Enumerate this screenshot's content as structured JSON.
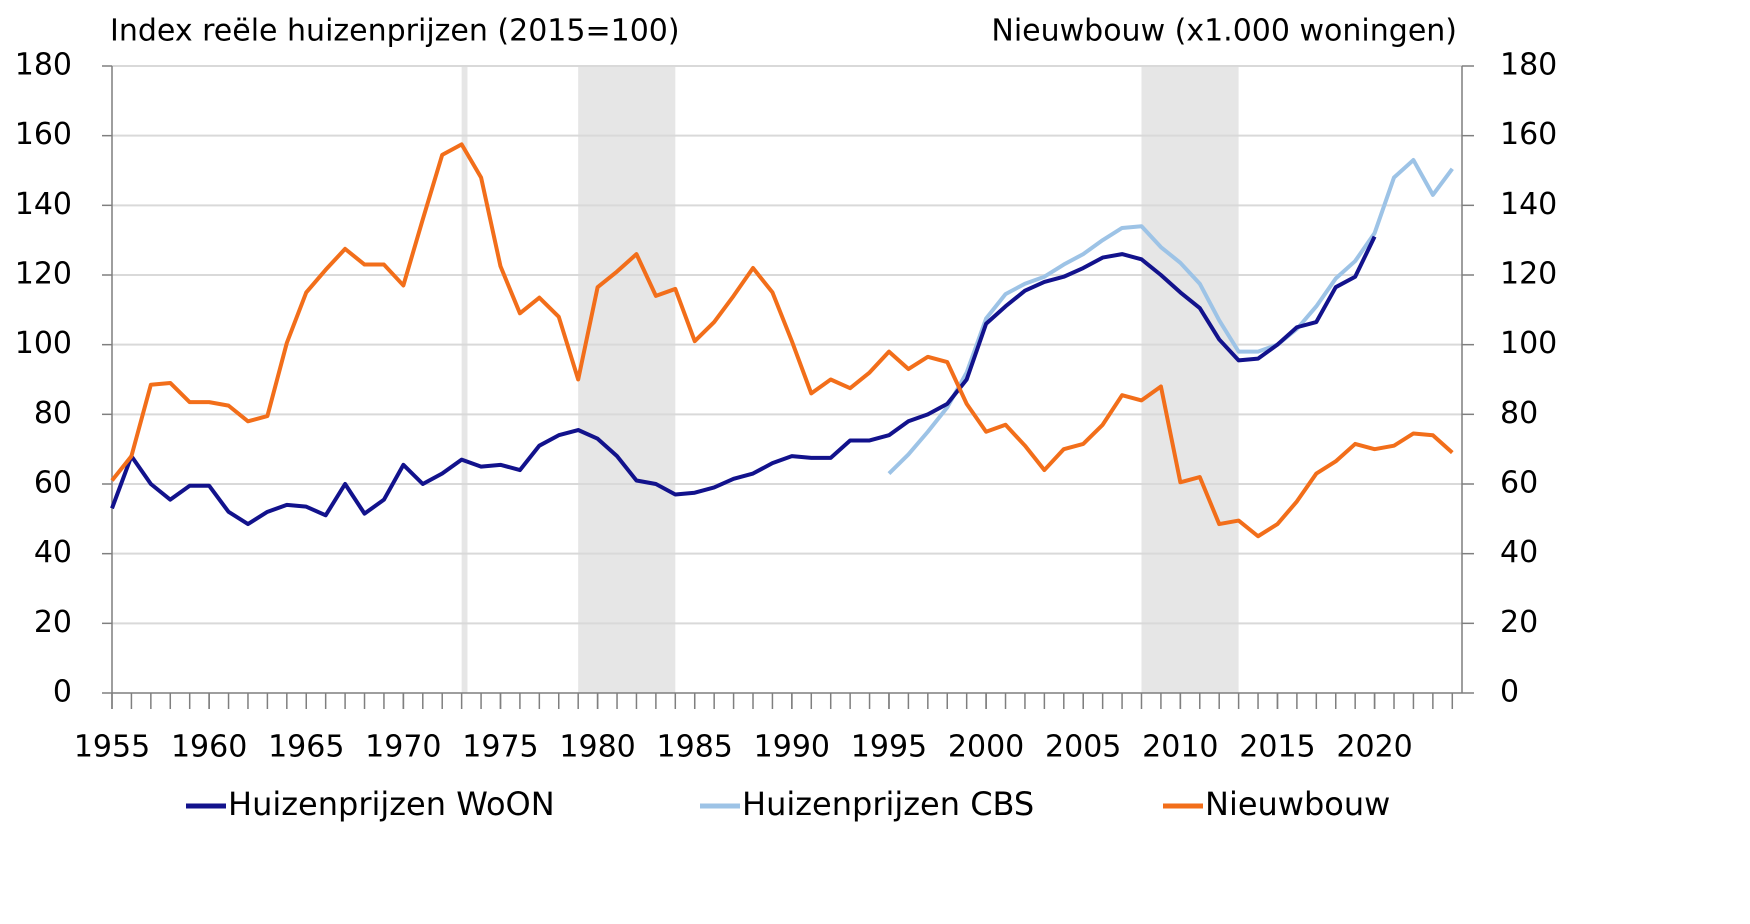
{
  "chart_data": {
    "type": "line",
    "y_title": "Index reële huizenprijzen (2015=100)",
    "y2_title": "Nieuwbouw (x1.000 woningen)",
    "x": [
      1955,
      1956,
      1957,
      1958,
      1959,
      1960,
      1961,
      1962,
      1963,
      1964,
      1965,
      1966,
      1967,
      1968,
      1969,
      1970,
      1971,
      1972,
      1973,
      1974,
      1975,
      1976,
      1977,
      1978,
      1979,
      1980,
      1981,
      1982,
      1983,
      1984,
      1985,
      1986,
      1987,
      1988,
      1989,
      1990,
      1991,
      1992,
      1993,
      1994,
      1995,
      1996,
      1997,
      1998,
      1999,
      2000,
      2001,
      2002,
      2003,
      2004,
      2005,
      2006,
      2007,
      2008,
      2009,
      2010,
      2011,
      2012,
      2013,
      2014,
      2015,
      2016,
      2017,
      2018,
      2019,
      2020,
      2021,
      2022,
      2023,
      2024
    ],
    "series": [
      {
        "name": "Huizenprijzen WoON",
        "color": "#12128c",
        "values": [
          53,
          68,
          60,
          55.5,
          59.5,
          59.5,
          52,
          48.5,
          52,
          54,
          53.5,
          51,
          60,
          51.5,
          55.5,
          65.5,
          60,
          63,
          67,
          65,
          65.5,
          64,
          71,
          74,
          75.5,
          73,
          68,
          61,
          60,
          57,
          57.5,
          59,
          61.5,
          63,
          66,
          68,
          67.5,
          67.5,
          72.5,
          72.5,
          74,
          78,
          80,
          83,
          90,
          106,
          111,
          115.5,
          118,
          119.5,
          122,
          125,
          126,
          124.5,
          120,
          115,
          110.5,
          101.5,
          95.5,
          96,
          100,
          105,
          106.5,
          116.5,
          119.5,
          131,
          null,
          null,
          null,
          null
        ]
      },
      {
        "name": "Huizenprijzen CBS",
        "color": "#9dc3e6",
        "values": [
          null,
          null,
          null,
          null,
          null,
          null,
          null,
          null,
          null,
          null,
          null,
          null,
          null,
          null,
          null,
          null,
          null,
          null,
          null,
          null,
          null,
          null,
          null,
          null,
          null,
          null,
          null,
          null,
          null,
          null,
          null,
          null,
          null,
          null,
          null,
          null,
          null,
          null,
          null,
          null,
          63,
          68.5,
          75,
          82,
          92,
          107.5,
          114.5,
          117.5,
          119.5,
          123,
          126,
          130,
          133.5,
          134,
          128,
          123.5,
          117.5,
          107,
          98,
          98,
          100,
          104.5,
          111,
          119,
          124,
          132,
          148,
          153,
          143,
          150.5
        ]
      },
      {
        "name": "Nieuwbouw",
        "color": "#f26e1a",
        "axis": "y2",
        "values": [
          61,
          68,
          88.5,
          89,
          83.5,
          83.5,
          82.5,
          78,
          79.5,
          100.5,
          115,
          121.5,
          127.5,
          123,
          123,
          117,
          136,
          154.5,
          157.5,
          148,
          122.5,
          109,
          113.5,
          108,
          90,
          116.5,
          121,
          126,
          114,
          116,
          101,
          106.5,
          114,
          122,
          115,
          101,
          86,
          90,
          87.5,
          92,
          98,
          93,
          96.5,
          95,
          83,
          75,
          77,
          71,
          64,
          70,
          71.5,
          77,
          85.5,
          84,
          88,
          60.5,
          62,
          48.5,
          49.5,
          45,
          48.5,
          55,
          63,
          66.5,
          71.5,
          70,
          71,
          74.5,
          74,
          69
        ]
      }
    ],
    "shaded_periods": [
      [
        1973,
        1973.3
      ],
      [
        1979,
        1984
      ],
      [
        2008,
        2013
      ]
    ],
    "shade_color": "#e6e6e6",
    "xlim": [
      1955,
      2024.5
    ],
    "xticks": [
      1955,
      1960,
      1965,
      1970,
      1975,
      1980,
      1985,
      1990,
      1995,
      2000,
      2005,
      2010,
      2015,
      2020
    ],
    "ylim": [
      0,
      180
    ],
    "yticks": [
      0,
      20,
      40,
      60,
      80,
      100,
      120,
      140,
      160,
      180
    ],
    "y2lim": [
      0,
      180
    ],
    "y2ticks": [
      0,
      20,
      40,
      60,
      80,
      100,
      120,
      140,
      160,
      180
    ],
    "grid": true,
    "legend": "bottom"
  }
}
